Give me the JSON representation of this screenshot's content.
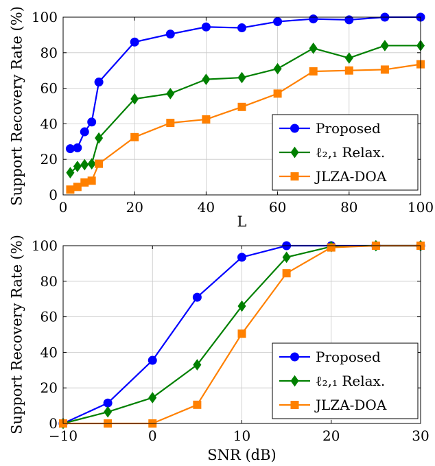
{
  "chart_data": [
    {
      "type": "line",
      "xlabel": "L",
      "ylabel": "Support Recovery Rate (%)",
      "xlim": [
        0,
        100
      ],
      "ylim": [
        0,
        100
      ],
      "xticks": [
        0,
        20,
        40,
        60,
        80,
        100
      ],
      "yticks": [
        0,
        20,
        40,
        60,
        80,
        100
      ],
      "grid": true,
      "legend_position": "bottom-right",
      "series": [
        {
          "name": "Proposed",
          "color": "#0000ff",
          "marker": "circle",
          "x": [
            2,
            4,
            6,
            8,
            10,
            20,
            30,
            40,
            50,
            60,
            70,
            80,
            90,
            100
          ],
          "y": [
            26,
            26.5,
            35.5,
            41,
            63.5,
            86,
            90.5,
            94.5,
            94,
            97.5,
            99,
            98.5,
            100,
            100
          ]
        },
        {
          "name": "ℓ₂,₁ Relax.",
          "color": "#008000",
          "marker": "diamond",
          "x": [
            2,
            4,
            6,
            8,
            10,
            20,
            30,
            40,
            50,
            60,
            70,
            80,
            90,
            100
          ],
          "y": [
            12.5,
            16,
            17,
            17.5,
            32,
            54,
            57,
            65,
            66,
            71,
            82.5,
            77,
            84,
            84
          ]
        },
        {
          "name": "JLZA-DOA",
          "color": "#ff8000",
          "marker": "square",
          "x": [
            2,
            4,
            6,
            8,
            10,
            20,
            30,
            40,
            50,
            60,
            70,
            80,
            90,
            100
          ],
          "y": [
            3,
            4.5,
            7,
            8,
            17.5,
            32.5,
            40.5,
            42.5,
            49.5,
            57,
            69.5,
            70,
            70.5,
            73.5
          ]
        }
      ]
    },
    {
      "type": "line",
      "xlabel": "SNR (dB)",
      "ylabel": "Support Recovery Rate (%)",
      "xlim": [
        -10,
        30
      ],
      "ylim": [
        0,
        100
      ],
      "xticks": [
        -10,
        0,
        10,
        20,
        30
      ],
      "yticks": [
        0,
        20,
        40,
        60,
        80,
        100
      ],
      "grid": true,
      "legend_position": "bottom-right",
      "series": [
        {
          "name": "Proposed",
          "color": "#0000ff",
          "marker": "circle",
          "x": [
            -10,
            -5,
            0,
            5,
            10,
            15,
            20,
            25,
            30
          ],
          "y": [
            0,
            11.5,
            35.5,
            71,
            93.5,
            100,
            100,
            100,
            100
          ]
        },
        {
          "name": "ℓ₂,₁ Relax.",
          "color": "#008000",
          "marker": "diamond",
          "x": [
            -10,
            -5,
            0,
            5,
            10,
            15,
            20,
            25,
            30
          ],
          "y": [
            0,
            6.5,
            14.5,
            33,
            66,
            93.5,
            99.5,
            100,
            100
          ]
        },
        {
          "name": "JLZA-DOA",
          "color": "#ff8000",
          "marker": "square",
          "x": [
            -10,
            -5,
            0,
            5,
            10,
            15,
            20,
            25,
            30
          ],
          "y": [
            0,
            0,
            0,
            10.5,
            50.5,
            84.5,
            99,
            100,
            100
          ]
        }
      ]
    }
  ]
}
